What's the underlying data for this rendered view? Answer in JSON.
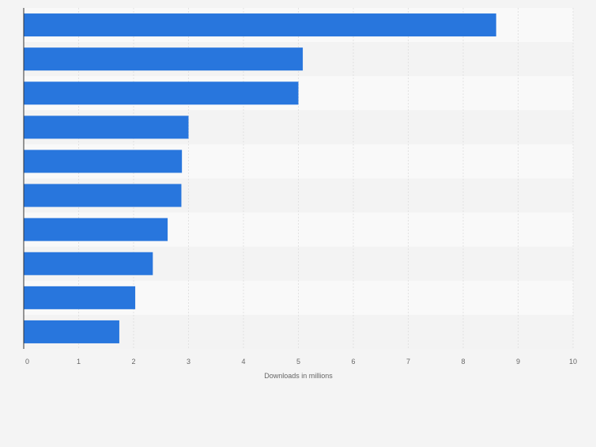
{
  "chart_data": {
    "type": "bar",
    "orientation": "horizontal",
    "categories": [
      "",
      "",
      "",
      "",
      "",
      "",
      "",
      "",
      "",
      ""
    ],
    "values": [
      8.6,
      5.08,
      5.0,
      3.0,
      2.88,
      2.87,
      2.62,
      2.35,
      2.03,
      1.74
    ],
    "xlabel": "Downloads in millions",
    "ylabel": "",
    "xlim": [
      0,
      10
    ],
    "xticks": [
      "0",
      "1",
      "2",
      "3",
      "4",
      "5",
      "6",
      "7",
      "8",
      "9",
      "10"
    ],
    "grid": true,
    "legend": "none",
    "colors": {
      "bar": "#2876dd",
      "band_light": "#f9f9f9",
      "band_dark": "#f3f3f3",
      "grid": "#e2e2e2",
      "axis": "#333333",
      "tick_label": "#666666",
      "background": "#f4f4f4"
    }
  }
}
